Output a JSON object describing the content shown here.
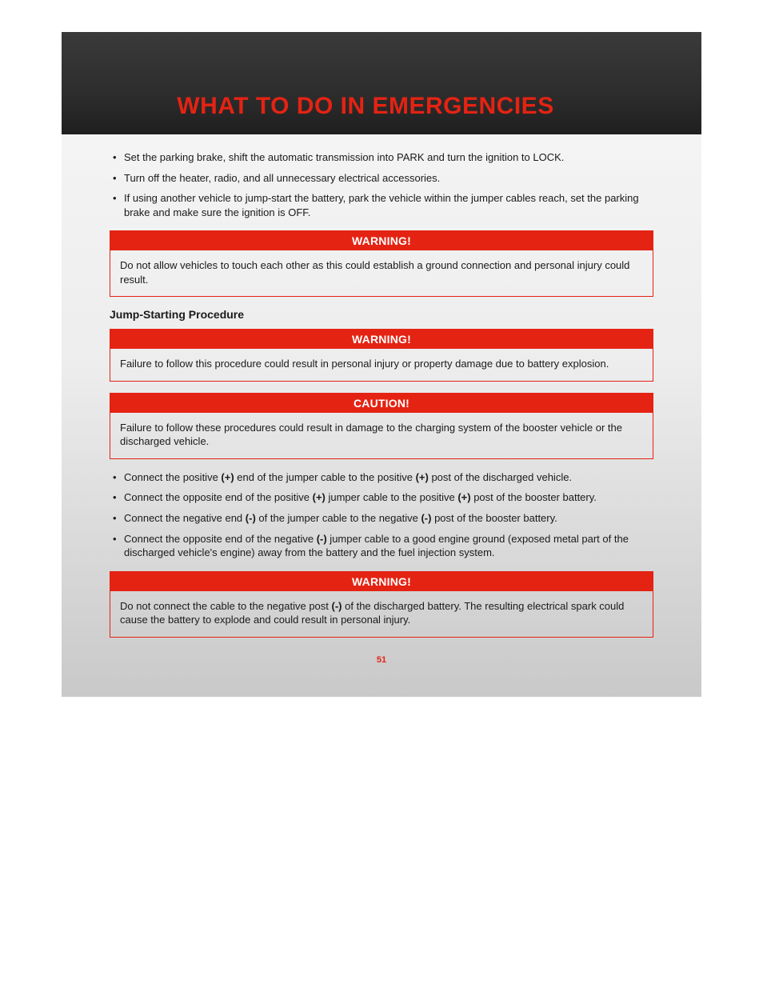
{
  "header": {
    "title": "WHAT TO DO IN EMERGENCIES"
  },
  "colors": {
    "accent_red": "#e42313",
    "header_bg_top": "#3a3a3a",
    "header_bg_bottom": "#1f1f1f",
    "page_bg_top": "#f7f7f7",
    "page_bg_bottom": "#c9c9c9",
    "text": "#1a1a1a",
    "white": "#ffffff"
  },
  "typography": {
    "title_fontsize": 30,
    "title_weight": 700,
    "body_fontsize": 13,
    "subheading_fontsize": 14,
    "alert_header_fontsize": 14
  },
  "prep_bullets": [
    "Set the parking brake, shift the automatic transmission into PARK and turn the ignition to LOCK.",
    "Turn off the heater, radio, and all unnecessary electrical accessories.",
    "If using another vehicle to jump-start the battery, park the vehicle within the jumper cables reach, set the parking brake and make sure the ignition is OFF."
  ],
  "warning1": {
    "label": "WARNING!",
    "body": "Do not allow vehicles to touch each other as this could establish a ground connection and personal injury could result."
  },
  "subheading": "Jump-Starting Procedure",
  "warning2": {
    "label": "WARNING!",
    "body": "Failure to follow this procedure could result in personal injury or property damage due to battery explosion."
  },
  "caution1": {
    "label": "CAUTION!",
    "body": "Failure to follow these procedures could result in damage to the charging system of the booster vehicle or the discharged vehicle."
  },
  "procedure_bullets": [
    {
      "pre": "Connect the positive ",
      "b1": "(+)",
      "mid": " end of the jumper cable to the positive ",
      "b2": "(+)",
      "post": " post of the discharged vehicle."
    },
    {
      "pre": "Connect the opposite end of the positive ",
      "b1": "(+)",
      "mid": " jumper cable to the positive ",
      "b2": "(+)",
      "post": " post of the booster battery."
    },
    {
      "pre": "Connect the negative end ",
      "b1": "(-)",
      "mid": " of the jumper cable to the negative ",
      "b2": "(-)",
      "post": " post of the booster battery."
    },
    {
      "pre": "Connect the opposite end of the negative ",
      "b1": "(-)",
      "mid": " jumper cable to a good engine ground (exposed metal part of the discharged vehicle's engine) away from the battery and the fuel injection system.",
      "b2": "",
      "post": ""
    }
  ],
  "warning3": {
    "label": "WARNING!",
    "body_pre": "Do not connect the cable to the negative post ",
    "body_bold": "(-)",
    "body_post": " of the discharged battery. The resulting electrical spark could cause the battery to explode and could result in personal injury."
  },
  "page_number": "51"
}
